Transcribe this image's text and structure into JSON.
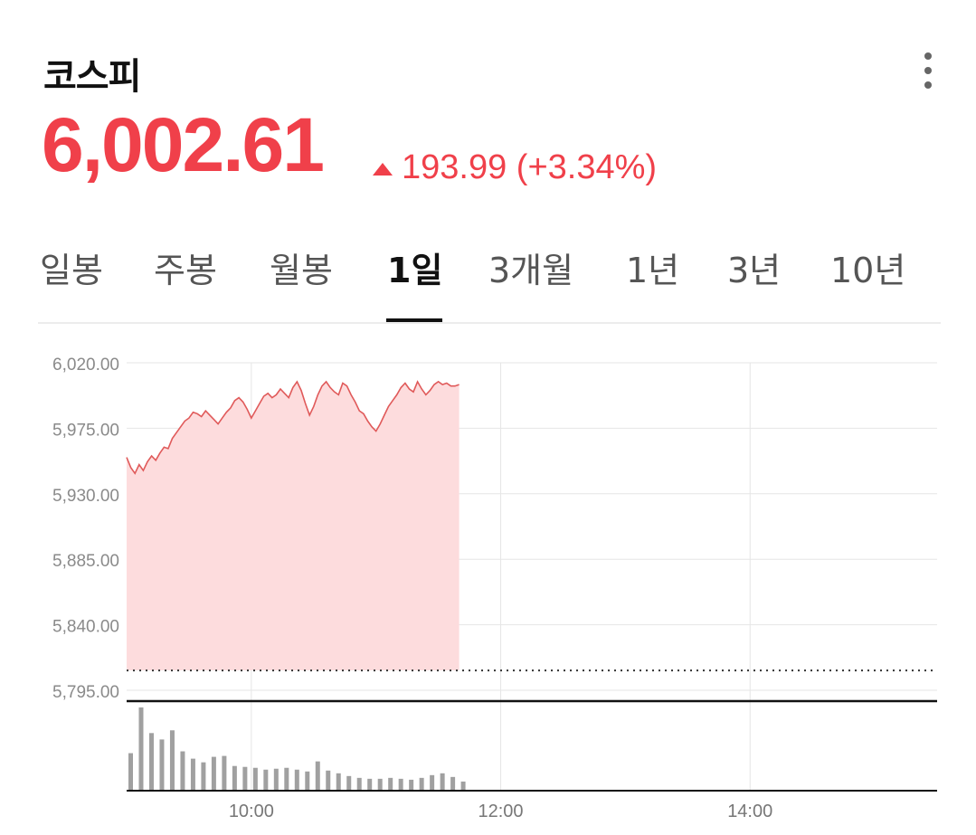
{
  "header": {
    "title": "코스피",
    "price": "6,002.61",
    "change": "193.99 (+3.34%)",
    "menu_icon": "more-vertical-icon"
  },
  "tabs": [
    {
      "label": "일봉",
      "active": false
    },
    {
      "label": "주봉",
      "active": false
    },
    {
      "label": "월봉",
      "active": false
    },
    {
      "label": "1일",
      "active": true
    },
    {
      "label": "3개월",
      "active": false
    },
    {
      "label": "1년",
      "active": false
    },
    {
      "label": "3년",
      "active": false
    },
    {
      "label": "10년",
      "active": false
    }
  ],
  "colors": {
    "up": "#f0404a",
    "line": "#e05a5a",
    "fill": "#fddcdd",
    "grid": "#e6e6e6",
    "volume": "#a0a0a0"
  },
  "chart_data": {
    "type": "area",
    "ylim": [
      5795,
      6020
    ],
    "yticks": [
      "6,020.00",
      "5,975.00",
      "5,930.00",
      "5,885.00",
      "5,840.00",
      "5,795.00"
    ],
    "ytick_values": [
      6020,
      5975,
      5930,
      5885,
      5840,
      5795
    ],
    "xlim": [
      "09:00",
      "15:30"
    ],
    "xticks": [
      "10:00",
      "12:00",
      "14:00"
    ],
    "xtick_values": [
      "10:00",
      "12:00",
      "14:00"
    ],
    "previous_close": 5808.62,
    "series": [
      {
        "x": [
          "09:00",
          "09:02",
          "09:04",
          "09:06",
          "09:08",
          "09:10",
          "09:12",
          "09:14",
          "09:16",
          "09:18",
          "09:20",
          "09:22",
          "09:24",
          "09:26",
          "09:28",
          "09:30",
          "09:32",
          "09:34",
          "09:36",
          "09:38",
          "09:40",
          "09:42",
          "09:44",
          "09:46",
          "09:48",
          "09:50",
          "09:52",
          "09:54",
          "09:56",
          "09:58",
          "10:00",
          "10:02",
          "10:04",
          "10:06",
          "10:08",
          "10:10",
          "10:12",
          "10:14",
          "10:16",
          "10:18",
          "10:20",
          "10:22",
          "10:24",
          "10:26",
          "10:28",
          "10:30",
          "10:32",
          "10:34",
          "10:36",
          "10:38",
          "10:40",
          "10:42",
          "10:44",
          "10:46",
          "10:48",
          "10:50",
          "10:52",
          "10:54",
          "10:56",
          "10:58",
          "11:00",
          "11:02",
          "11:04",
          "11:06",
          "11:08",
          "11:10",
          "11:12",
          "11:14",
          "11:16",
          "11:18",
          "11:20",
          "11:22",
          "11:24",
          "11:26",
          "11:28",
          "11:30",
          "11:32",
          "11:34",
          "11:36",
          "11:38",
          "11:40"
        ],
        "values": [
          5955,
          5948,
          5944,
          5950,
          5946,
          5952,
          5956,
          5953,
          5958,
          5962,
          5961,
          5968,
          5972,
          5976,
          5980,
          5982,
          5986,
          5985,
          5983,
          5987,
          5984,
          5981,
          5978,
          5982,
          5986,
          5989,
          5994,
          5996,
          5993,
          5988,
          5982,
          5987,
          5992,
          5997,
          5999,
          5996,
          5998,
          6002,
          5999,
          5996,
          6003,
          6007,
          6001,
          5992,
          5984,
          5990,
          5998,
          6004,
          6007,
          6003,
          6000,
          5998,
          6006,
          6004,
          5998,
          5993,
          5987,
          5985,
          5980,
          5976,
          5973,
          5978,
          5984,
          5990,
          5994,
          5998,
          6003,
          6006,
          6002,
          6000,
          6007,
          6002,
          5998,
          6001,
          6005,
          6007,
          6005,
          6006,
          6004,
          6004,
          6005
        ]
      }
    ],
    "volume": {
      "x": [
        "09:00",
        "09:05",
        "09:10",
        "09:15",
        "09:20",
        "09:25",
        "09:30",
        "09:35",
        "09:40",
        "09:45",
        "09:50",
        "09:55",
        "10:00",
        "10:05",
        "10:10",
        "10:15",
        "10:20",
        "10:25",
        "10:30",
        "10:35",
        "10:40",
        "10:45",
        "10:50",
        "10:55",
        "11:00",
        "11:05",
        "11:10",
        "11:15",
        "11:20",
        "11:25",
        "11:30",
        "11:35",
        "11:40"
      ],
      "values": [
        40,
        90,
        62,
        55,
        65,
        42,
        34,
        30,
        36,
        37,
        26,
        25,
        24,
        22,
        23,
        24,
        22,
        20,
        31,
        21,
        18,
        15,
        13,
        12,
        12,
        13,
        12,
        11,
        13,
        16,
        18,
        14,
        9
      ]
    },
    "grid": true
  }
}
